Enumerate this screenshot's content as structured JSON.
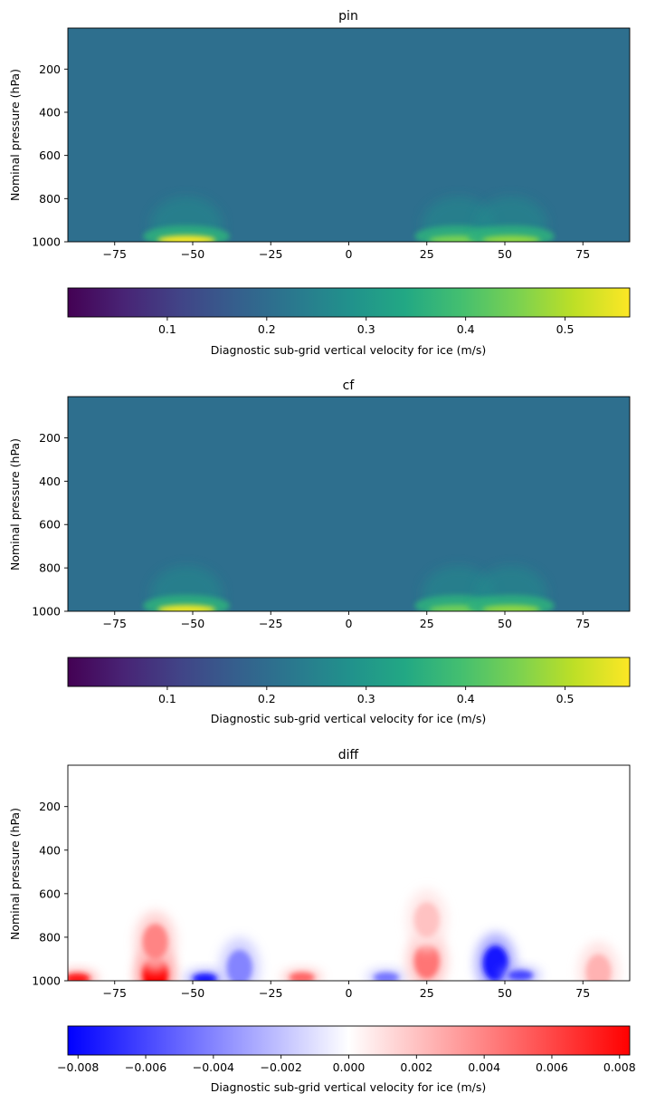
{
  "chart_data": [
    {
      "type": "heatmap",
      "title": "pin",
      "xlabel": "",
      "ylabel": "Nominal pressure (hPa)",
      "xlim": [
        -90,
        90
      ],
      "ylim": [
        1000,
        10
      ],
      "y_inverted": true,
      "xticks": [
        -75,
        -50,
        -25,
        0,
        25,
        50,
        75
      ],
      "xtick_labels": [
        "−75",
        "−50",
        "−25",
        "0",
        "25",
        "50",
        "75"
      ],
      "yticks": [
        200,
        400,
        600,
        800,
        1000
      ],
      "ytick_labels": [
        "200",
        "400",
        "600",
        "800",
        "1000"
      ],
      "colormap": "viridis",
      "background_value": 0.205,
      "hotspots": [
        {
          "lat": -52,
          "p": 1000,
          "peak": 0.56
        },
        {
          "lat": 35,
          "p": 1000,
          "peak": 0.45
        },
        {
          "lat": 52,
          "p": 1000,
          "peak": 0.47
        }
      ],
      "colorbar": {
        "orientation": "horizontal",
        "range": [
          0.0,
          0.565
        ],
        "ticks": [
          0.1,
          0.2,
          0.3,
          0.4,
          0.5
        ],
        "tick_labels": [
          "0.1",
          "0.2",
          "0.3",
          "0.4",
          "0.5"
        ],
        "label": "Diagnostic sub-grid vertical velocity for ice (m/s)"
      }
    },
    {
      "type": "heatmap",
      "title": "cf",
      "xlabel": "",
      "ylabel": "Nominal pressure (hPa)",
      "xlim": [
        -90,
        90
      ],
      "ylim": [
        1000,
        10
      ],
      "y_inverted": true,
      "xticks": [
        -75,
        -50,
        -25,
        0,
        25,
        50,
        75
      ],
      "xtick_labels": [
        "−75",
        "−50",
        "−25",
        "0",
        "25",
        "50",
        "75"
      ],
      "yticks": [
        200,
        400,
        600,
        800,
        1000
      ],
      "ytick_labels": [
        "200",
        "400",
        "600",
        "800",
        "1000"
      ],
      "colormap": "viridis",
      "background_value": 0.205,
      "hotspots": [
        {
          "lat": -52,
          "p": 1000,
          "peak": 0.55
        },
        {
          "lat": 35,
          "p": 1000,
          "peak": 0.44
        },
        {
          "lat": 52,
          "p": 1000,
          "peak": 0.47
        }
      ],
      "colorbar": {
        "orientation": "horizontal",
        "range": [
          0.0,
          0.565
        ],
        "ticks": [
          0.1,
          0.2,
          0.3,
          0.4,
          0.5
        ],
        "tick_labels": [
          "0.1",
          "0.2",
          "0.3",
          "0.4",
          "0.5"
        ],
        "label": "Diagnostic sub-grid vertical velocity for ice (m/s)"
      }
    },
    {
      "type": "heatmap",
      "title": "diff",
      "xlabel": "",
      "ylabel": "Nominal pressure (hPa)",
      "xlim": [
        -90,
        90
      ],
      "ylim": [
        1000,
        10
      ],
      "y_inverted": true,
      "xticks": [
        -75,
        -50,
        -25,
        0,
        25,
        50,
        75
      ],
      "xtick_labels": [
        "−75",
        "−50",
        "−25",
        "0",
        "25",
        "50",
        "75"
      ],
      "yticks": [
        200,
        400,
        600,
        800,
        1000
      ],
      "ytick_labels": [
        "200",
        "400",
        "600",
        "800",
        "1000"
      ],
      "colormap": "bwr",
      "features": [
        {
          "lat": -87,
          "p": 990,
          "value": 0.0075
        },
        {
          "lat": -62,
          "p": 970,
          "value": 0.0082
        },
        {
          "lat": -62,
          "p": 820,
          "value": 0.004
        },
        {
          "lat": -46,
          "p": 990,
          "value": -0.0075
        },
        {
          "lat": -35,
          "p": 940,
          "value": -0.004
        },
        {
          "lat": -15,
          "p": 985,
          "value": 0.005
        },
        {
          "lat": 12,
          "p": 985,
          "value": -0.0045
        },
        {
          "lat": 25,
          "p": 910,
          "value": 0.0045
        },
        {
          "lat": 25,
          "p": 720,
          "value": 0.002
        },
        {
          "lat": 47,
          "p": 920,
          "value": -0.0075
        },
        {
          "lat": 55,
          "p": 975,
          "value": -0.006
        },
        {
          "lat": 80,
          "p": 960,
          "value": 0.0025
        }
      ],
      "colorbar": {
        "orientation": "horizontal",
        "range": [
          -0.0083,
          0.0083
        ],
        "ticks": [
          -0.008,
          -0.006,
          -0.004,
          -0.002,
          0.0,
          0.002,
          0.004,
          0.006,
          0.008
        ],
        "tick_labels": [
          "−0.008",
          "−0.006",
          "−0.004",
          "−0.002",
          "0.000",
          "0.002",
          "0.004",
          "0.006",
          "0.008"
        ],
        "label": "Diagnostic sub-grid vertical velocity for ice (m/s)"
      }
    }
  ]
}
